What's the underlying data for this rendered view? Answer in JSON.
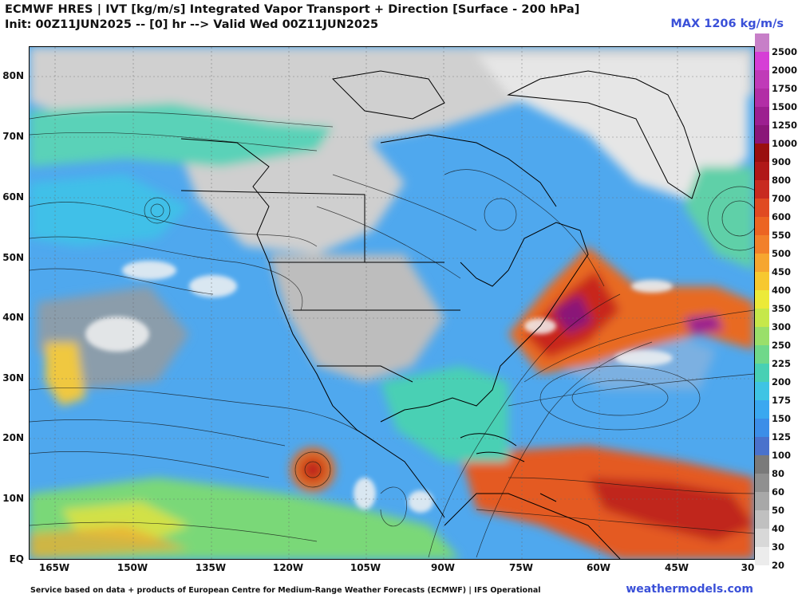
{
  "header": {
    "title_line1": "ECMWF HRES | IVT [kg/m/s] Integrated Vapor Transport + Direction [Surface - 200 hPa]",
    "title_line2": "Init: 00Z11JUN2025 -- [0] hr --> Valid Wed 00Z11JUN2025",
    "max_label": "MAX 1206 kg/m/s"
  },
  "axes": {
    "lat_labels": [
      "80N",
      "70N",
      "60N",
      "50N",
      "40N",
      "30N",
      "20N",
      "10N",
      "EQ"
    ],
    "lon_labels": [
      "165W",
      "150W",
      "135W",
      "120W",
      "105W",
      "90W",
      "75W",
      "60W",
      "45W",
      "30"
    ]
  },
  "colorbar": {
    "labels": [
      "2500",
      "2000",
      "1750",
      "1500",
      "1250",
      "1000",
      "900",
      "800",
      "700",
      "600",
      "550",
      "500",
      "450",
      "400",
      "350",
      "300",
      "250",
      "225",
      "200",
      "175",
      "150",
      "125",
      "100",
      "80",
      "60",
      "50",
      "40",
      "30",
      "20"
    ],
    "colors": [
      "#c77fc8",
      "#d63ed6",
      "#c03ab8",
      "#b22ea6",
      "#9c1f90",
      "#8a1678",
      "#9a0f0f",
      "#b01818",
      "#c82a20",
      "#e04a22",
      "#ec6422",
      "#f2802a",
      "#f6a630",
      "#f7c830",
      "#ecea38",
      "#c6e84a",
      "#9adf6a",
      "#6fd88a",
      "#48d0b4",
      "#3ec4e4",
      "#3aa8f0",
      "#3c8ee8",
      "#4a72cc",
      "#7a7a7a",
      "#909090",
      "#a8a8a8",
      "#c0c0c0",
      "#d8d8d8",
      "#ececec"
    ]
  },
  "footer": {
    "credit": "Service based on data + products of European Centre for Medium-Range Weather Forecasts (ECMWF) | IFS Operational",
    "site": "weathermodels.com"
  }
}
